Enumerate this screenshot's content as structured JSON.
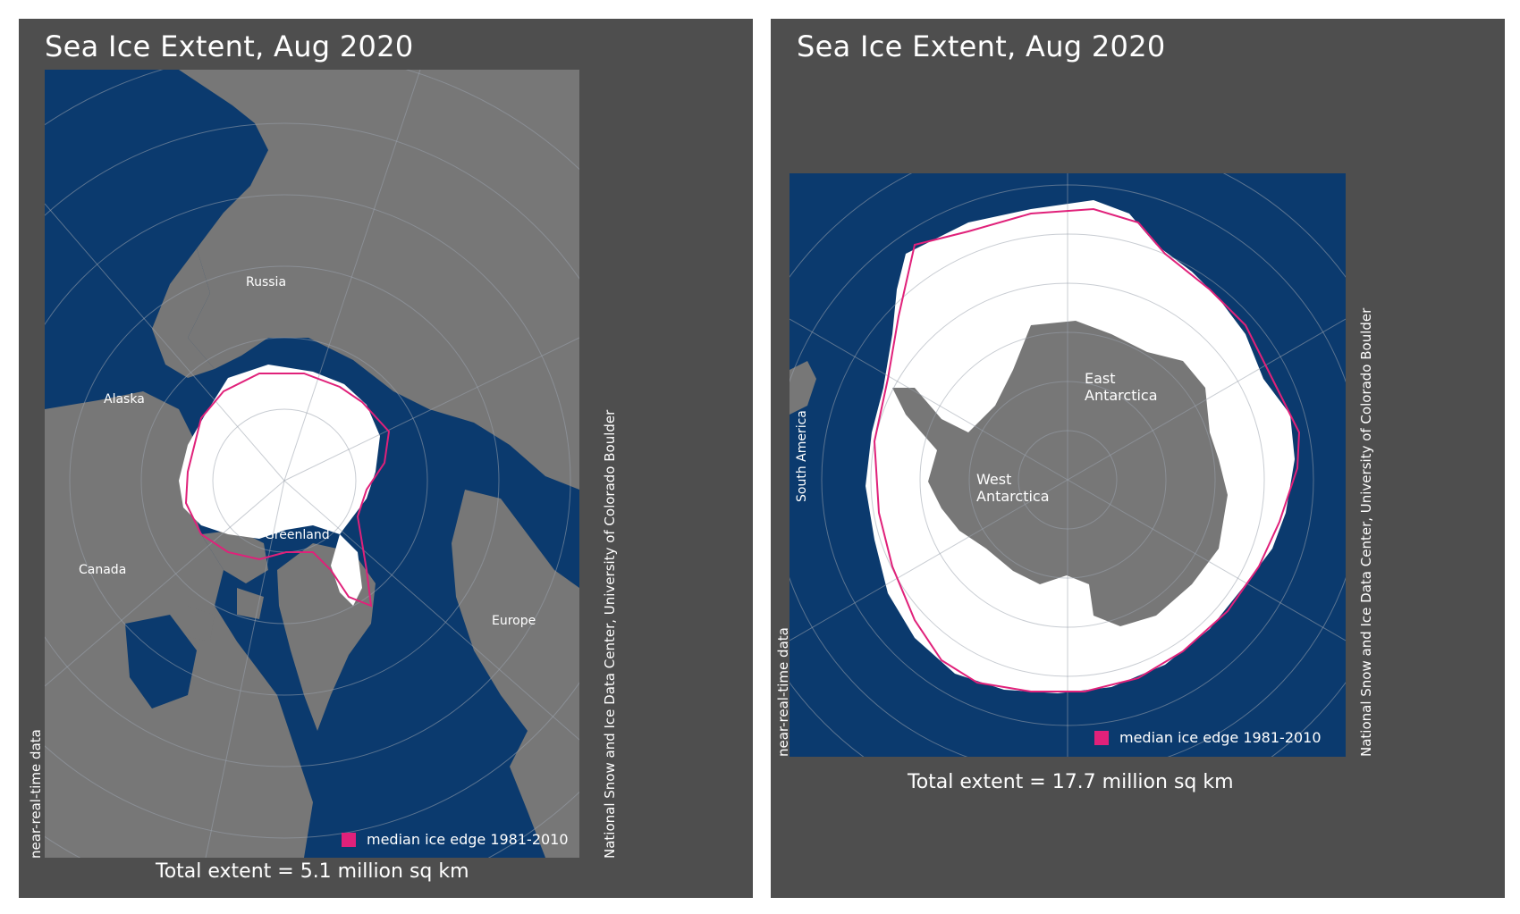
{
  "panels": [
    {
      "title": "Sea Ice Extent, Aug 2020",
      "labels": {
        "russia": "Russia",
        "alaska": "Alaska",
        "canada": "Canada",
        "greenland": "Greenland",
        "europe": "Europe"
      },
      "legend": "median ice edge 1981-2010",
      "total_extent": "Total extent = 5.1 million sq km",
      "side_note_left": "near-real-time data",
      "side_note_right": "National Snow and Ice Data Center, University of Colorado Boulder"
    },
    {
      "title": "Sea Ice Extent, Aug 2020",
      "labels": {
        "south_america": "South America",
        "east_antarctica_1": "East",
        "east_antarctica_2": "Antarctica",
        "west_antarctica_1": "West",
        "west_antarctica_2": "Antarctica"
      },
      "legend": "median ice edge 1981-2010",
      "total_extent": "Total extent = 17.7 million sq km",
      "side_note_left": "near-real-time data",
      "side_note_right": "National Snow and Ice Data Center, University of Colorado Boulder"
    }
  ],
  "colors": {
    "panel_bg": "#4e4e4e",
    "ocean": "#0b3a6e",
    "land": "#777777",
    "ice": "#ffffff",
    "median_edge": "#e0217a",
    "grid": "#9aa3ad"
  }
}
